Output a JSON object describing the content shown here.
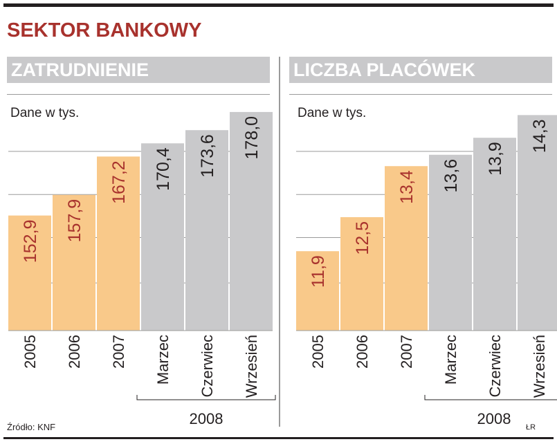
{
  "title": "SEKTOR BANKOWY",
  "source": "Źródło: KNF",
  "credit": "ŁR",
  "colors": {
    "past": "#f9c98a",
    "current": "#c9c9cb",
    "label_past": "#a8322d",
    "label_current": "#231f20",
    "gridline": "#9a9a9a",
    "title": "#a8322d"
  },
  "chart_data": [
    {
      "type": "bar",
      "title": "ZATRUDNIENIE",
      "subtitle": "Dane w tys.",
      "categories": [
        "2005",
        "2006",
        "2007",
        "Marzec",
        "Czerwiec",
        "Wrzesień"
      ],
      "values": [
        152.9,
        157.9,
        167.2,
        170.4,
        173.6,
        178.0
      ],
      "value_labels": [
        "152,9",
        "157,9",
        "167,2",
        "170,4",
        "173,6",
        "178,0"
      ],
      "group_label": "2008",
      "grid": true,
      "ylim": [
        125,
        180
      ]
    },
    {
      "type": "bar",
      "title": "LICZBA PLACÓWEK",
      "subtitle": "Dane w tys.",
      "categories": [
        "2005",
        "2006",
        "2007",
        "Marzec",
        "Czerwiec",
        "Wrzesień"
      ],
      "values": [
        11.9,
        12.5,
        13.4,
        13.6,
        13.9,
        14.3
      ],
      "value_labels": [
        "11,9",
        "12,5",
        "13,4",
        "13,6",
        "13,9",
        "14,3"
      ],
      "group_label": "2008",
      "grid": true,
      "ylim": [
        10.5,
        14.5
      ]
    }
  ]
}
